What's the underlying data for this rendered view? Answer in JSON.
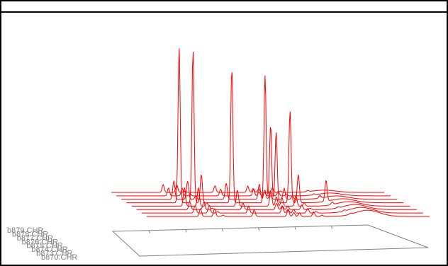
{
  "chart_data": {
    "type": "line",
    "title": "",
    "xlabel": "",
    "ylabel": "",
    "grid": false,
    "depth_labels": [
      "b879.CHR",
      "b878.CHR",
      "b877.CHR",
      "b876.CHR",
      "b875.CHR",
      "b874.CHR",
      "b873.CHR",
      "b870.CHR"
    ],
    "trace_color": "#ff0000",
    "floor_color": "#808080",
    "x": [
      0,
      5,
      10,
      15,
      20,
      25,
      30,
      35,
      40,
      45,
      50,
      55,
      60,
      65,
      70,
      75,
      80,
      85,
      90,
      95,
      100
    ],
    "peaks": [
      {
        "x": 19,
        "height": 220
      },
      {
        "x": 24,
        "height": 215
      },
      {
        "x": 27,
        "height": 40
      },
      {
        "x": 38,
        "height": 190
      },
      {
        "x": 50,
        "height": 180
      },
      {
        "x": 52,
        "height": 110
      },
      {
        "x": 54,
        "height": 100
      },
      {
        "x": 59,
        "height": 130
      },
      {
        "x": 62,
        "height": 40
      },
      {
        "x": 72,
        "height": 30
      }
    ]
  }
}
